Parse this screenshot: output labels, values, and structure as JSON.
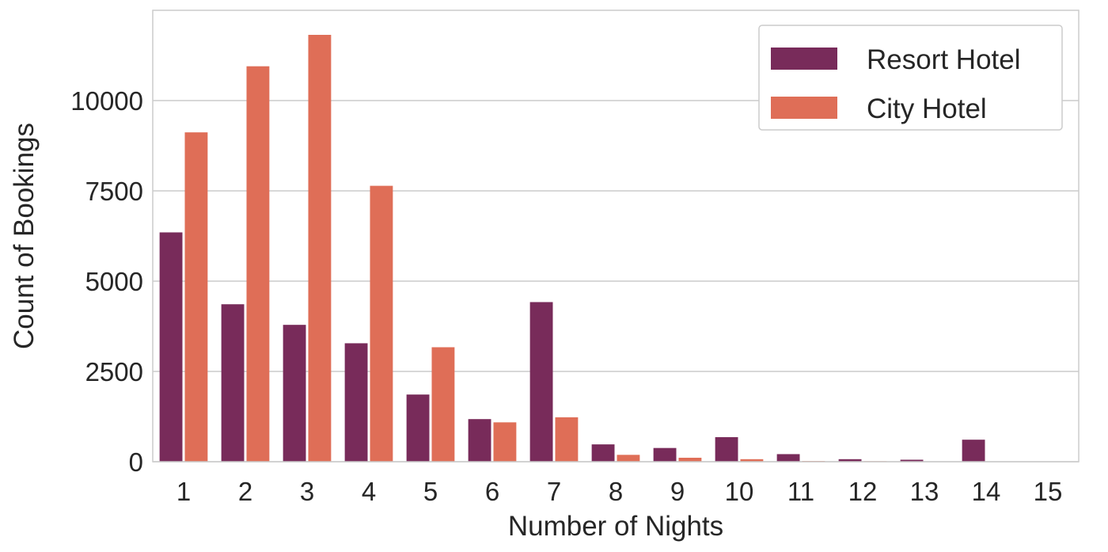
{
  "chart_data": {
    "type": "bar",
    "title": "",
    "xlabel": "Number of Nights",
    "ylabel": "Count of Bookings",
    "categories": [
      "1",
      "2",
      "3",
      "4",
      "5",
      "6",
      "7",
      "8",
      "9",
      "10",
      "11",
      "12",
      "13",
      "14",
      "15"
    ],
    "series": [
      {
        "name": "Resort Hotel",
        "color": "#782b5a",
        "values": [
          6350,
          4360,
          3790,
          3280,
          1860,
          1180,
          4420,
          480,
          380,
          680,
          210,
          70,
          55,
          610,
          0
        ]
      },
      {
        "name": "City Hotel",
        "color": "#df6e57",
        "values": [
          9120,
          10950,
          11820,
          7640,
          3170,
          1090,
          1230,
          190,
          110,
          70,
          20,
          15,
          10,
          10,
          0
        ]
      }
    ],
    "yticks": [
      0,
      2500,
      5000,
      7500,
      10000
    ],
    "ylim": [
      0,
      12500
    ],
    "grid": "horizontal",
    "legend": "top-right"
  }
}
